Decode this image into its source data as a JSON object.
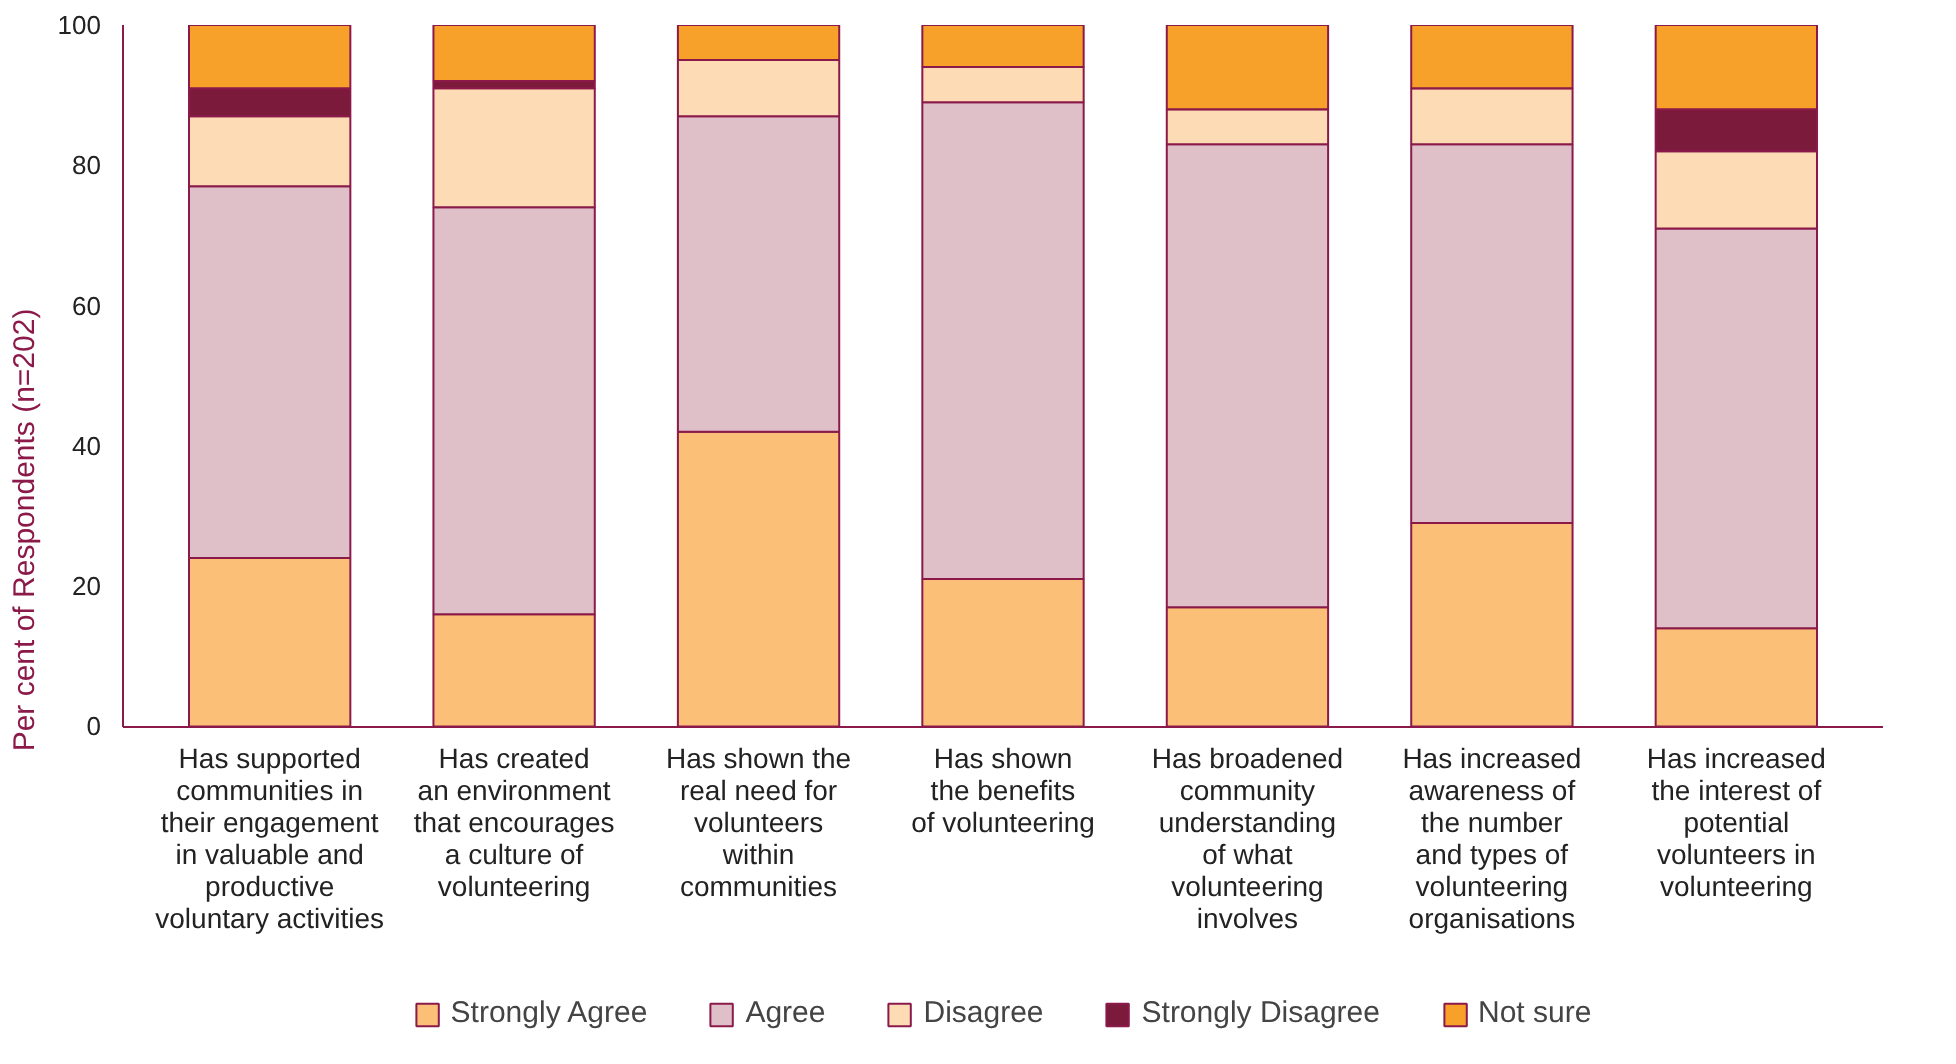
{
  "chart_data": {
    "type": "bar",
    "stacked": true,
    "ylabel": "Per cent of Respondents (n=202)",
    "categories": [
      "Has supported\ncommunities in\ntheir engagement\nin valuable and\nproductive\nvoluntary activities",
      "Has created\nan environment\nthat encourages\na culture of\nvolunteering",
      "Has shown the\nreal need for\nvolunteers\nwithin\ncommunities",
      "Has shown\nthe benefits\nof volunteering",
      "Has broadened\ncommunity\nunderstanding\nof what\nvolunteering\ninvolves",
      "Has increased\nawareness of\nthe number\nand types of\nvolunteering\norganisations",
      "Has increased\nthe interest of\npotential\nvolunteers in\nvolunteering"
    ],
    "series": [
      {
        "name": "Strongly Agree",
        "color": "#fbbf77",
        "values": [
          24,
          16,
          42,
          21,
          17,
          29,
          14
        ]
      },
      {
        "name": "Agree",
        "color": "#dfc0c8",
        "values": [
          53,
          58,
          45,
          68,
          66,
          54,
          57
        ]
      },
      {
        "name": "Disagree",
        "color": "#fddcb5",
        "values": [
          10,
          17,
          8,
          5,
          5,
          8,
          11
        ]
      },
      {
        "name": "Strongly Disagree",
        "color": "#7b1a3a",
        "values": [
          4,
          1,
          0,
          0,
          0,
          0,
          6
        ]
      },
      {
        "name": "Not sure",
        "color": "#f7a02a",
        "values": [
          9,
          8,
          5,
          6,
          12,
          9,
          12
        ]
      }
    ],
    "ylim": [
      0,
      100
    ],
    "yticks": [
      0,
      20,
      40,
      60,
      80,
      100
    ],
    "grid": false,
    "legend": "bottom"
  }
}
